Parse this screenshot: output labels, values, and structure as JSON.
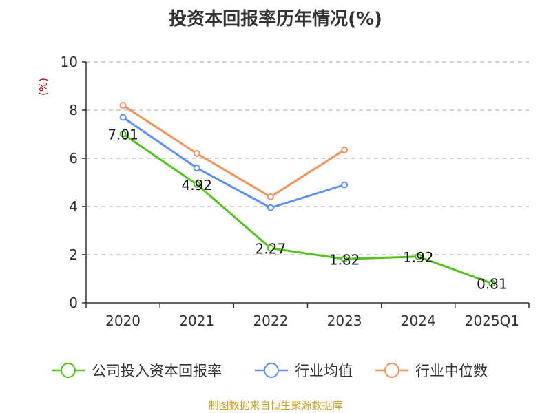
{
  "chart_data": {
    "type": "line",
    "title": "投资本回报率历年情况(%)",
    "ylabel": "(%)",
    "xlabel": "",
    "categories": [
      "2020",
      "2021",
      "2022",
      "2023",
      "2024",
      "2025Q1"
    ],
    "ylim": [
      0,
      10
    ],
    "yticks": [
      0,
      2,
      4,
      6,
      8,
      10
    ],
    "grid": true,
    "legend_position": "bottom",
    "series": [
      {
        "name": "公司投入资本回报率",
        "color": "#52c41a",
        "values": [
          7.01,
          4.92,
          2.27,
          1.82,
          1.92,
          0.81
        ],
        "labels": [
          "7.01",
          "4.92",
          "2.27",
          "1.82",
          "1.92",
          "0.81"
        ]
      },
      {
        "name": "行业均值",
        "color": "#5b8ff9",
        "values": [
          7.7,
          5.6,
          3.95,
          4.9,
          null,
          null
        ]
      },
      {
        "name": "行业中位数",
        "color": "#f5905a",
        "values": [
          8.2,
          6.2,
          4.4,
          6.35,
          null,
          null
        ]
      }
    ],
    "source": "制图数据来自恒生聚源数据库"
  }
}
